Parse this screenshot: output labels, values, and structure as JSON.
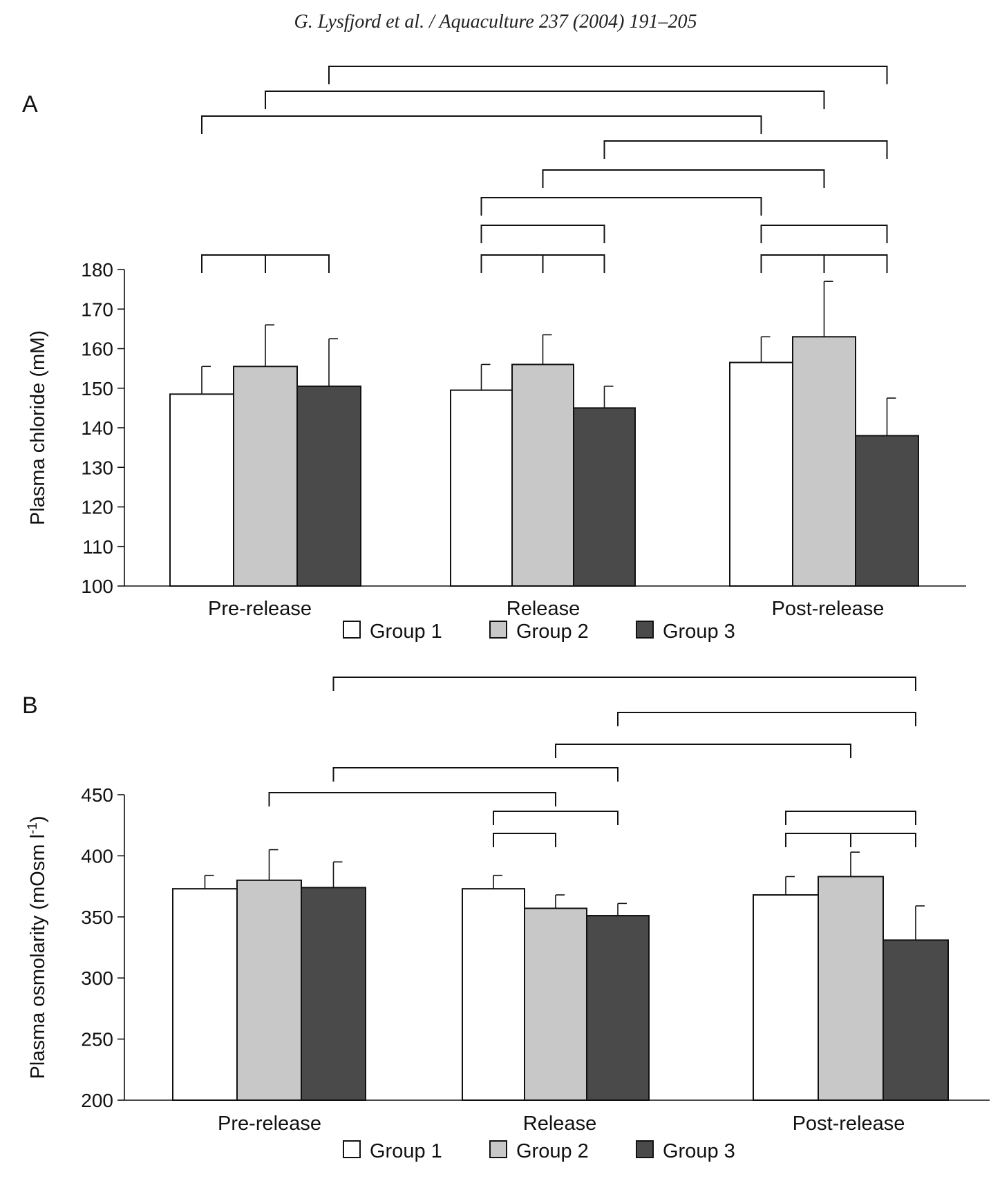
{
  "header": "G. Lysfjord et al. / Aquaculture 237 (2004) 191–205",
  "colors": {
    "group1": "#ffffff",
    "group2": "#c8c8c8",
    "group3": "#4a4a4a",
    "stroke": "#111111"
  },
  "chart_data": [
    {
      "type": "bar",
      "panel_label": "A",
      "ylabel": "Plasma chloride (mM)",
      "ylim": [
        100,
        180
      ],
      "yticks": [
        100,
        110,
        120,
        130,
        140,
        150,
        160,
        170,
        180
      ],
      "categories": [
        "Pre-release",
        "Release",
        "Post-release"
      ],
      "series": [
        {
          "name": "Group 1",
          "values": [
            148.5,
            149.5,
            156.5
          ],
          "errors": [
            7,
            6.5,
            6.5
          ]
        },
        {
          "name": "Group 2",
          "values": [
            155.5,
            156,
            163
          ],
          "errors": [
            10.5,
            7.5,
            14
          ]
        },
        {
          "name": "Group 3",
          "values": [
            150.5,
            145,
            138
          ],
          "errors": [
            12,
            5.5,
            9.5
          ]
        }
      ],
      "legend": {
        "position": "bottom-center",
        "entries": [
          "Group 1",
          "Group 2",
          "Group 3"
        ]
      },
      "significance_brackets": [
        {
          "from": [
            0,
            0
          ],
          "to": [
            0,
            1
          ],
          "level": 1
        },
        {
          "from": [
            0,
            1
          ],
          "to": [
            0,
            2
          ],
          "level": 1
        },
        {
          "from": [
            1,
            0
          ],
          "to": [
            1,
            1
          ],
          "level": 1
        },
        {
          "from": [
            1,
            1
          ],
          "to": [
            1,
            2
          ],
          "level": 1
        },
        {
          "from": [
            2,
            0
          ],
          "to": [
            2,
            1
          ],
          "level": 1
        },
        {
          "from": [
            2,
            1
          ],
          "to": [
            2,
            2
          ],
          "level": 1
        },
        {
          "from": [
            1,
            0
          ],
          "to": [
            1,
            2
          ],
          "level": 2
        },
        {
          "from": [
            2,
            0
          ],
          "to": [
            2,
            2
          ],
          "level": 2
        },
        {
          "from": [
            1,
            0
          ],
          "to": [
            2,
            0
          ],
          "level": 3
        },
        {
          "from": [
            1,
            1
          ],
          "to": [
            2,
            1
          ],
          "level": 4
        },
        {
          "from": [
            1,
            2
          ],
          "to": [
            2,
            2
          ],
          "level": 5
        },
        {
          "from": [
            0,
            0
          ],
          "to": [
            2,
            0
          ],
          "level": 6
        },
        {
          "from": [
            0,
            1
          ],
          "to": [
            2,
            1
          ],
          "level": 7
        },
        {
          "from": [
            0,
            2
          ],
          "to": [
            2,
            2
          ],
          "level": 8
        }
      ]
    },
    {
      "type": "bar",
      "panel_label": "B",
      "ylabel_main": "Plasma osmolarity (mOsm l",
      "ylabel_sup": "-1",
      "ylabel_end": ")",
      "ylim": [
        200,
        450
      ],
      "yticks": [
        200,
        250,
        300,
        350,
        400,
        450
      ],
      "categories": [
        "Pre-release",
        "Release",
        "Post-release"
      ],
      "series": [
        {
          "name": "Group 1",
          "values": [
            373,
            373,
            368
          ],
          "errors": [
            11,
            11,
            15
          ]
        },
        {
          "name": "Group 2",
          "values": [
            380,
            357,
            383
          ],
          "errors": [
            25,
            11,
            20
          ]
        },
        {
          "name": "Group 3",
          "values": [
            374,
            351,
            331
          ],
          "errors": [
            21,
            10,
            28
          ]
        }
      ],
      "legend": {
        "position": "bottom-center",
        "entries": [
          "Group 1",
          "Group 2",
          "Group 3"
        ]
      },
      "significance_brackets": [
        {
          "from": [
            1,
            0
          ],
          "to": [
            1,
            1
          ],
          "level": 1
        },
        {
          "from": [
            2,
            0
          ],
          "to": [
            2,
            1
          ],
          "level": 1
        },
        {
          "from": [
            2,
            1
          ],
          "to": [
            2,
            2
          ],
          "level": 1
        },
        {
          "from": [
            1,
            0
          ],
          "to": [
            1,
            2
          ],
          "level": 2
        },
        {
          "from": [
            2,
            0
          ],
          "to": [
            2,
            2
          ],
          "level": 2
        },
        {
          "from": [
            0,
            1
          ],
          "to": [
            1,
            1
          ],
          "level": 3
        },
        {
          "from": [
            0,
            2
          ],
          "to": [
            1,
            2
          ],
          "level": 4
        },
        {
          "from": [
            1,
            1
          ],
          "to": [
            2,
            1
          ],
          "level": 5
        },
        {
          "from": [
            1,
            2
          ],
          "to": [
            2,
            2
          ],
          "level": 6
        },
        {
          "from": [
            0,
            2
          ],
          "to": [
            2,
            2
          ],
          "level": 7
        }
      ]
    }
  ]
}
